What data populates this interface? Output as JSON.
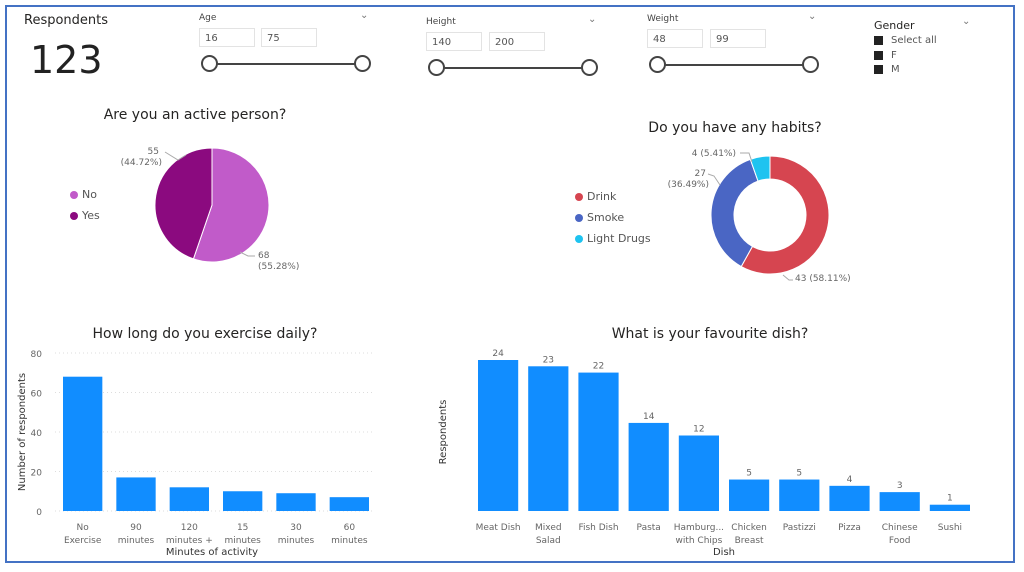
{
  "card": {
    "label": "Respondents",
    "value": "123"
  },
  "slicers": [
    {
      "label": "Age",
      "min": "16",
      "max": "75"
    },
    {
      "label": "Height",
      "min": "140",
      "max": "200"
    },
    {
      "label": "Weight",
      "min": "48",
      "max": "99"
    }
  ],
  "gender": {
    "label": "Gender",
    "options": [
      "Select all",
      "F",
      "M"
    ]
  },
  "chart_data": [
    {
      "type": "pie",
      "title": "Are you an active person?",
      "categories": [
        "No",
        "Yes"
      ],
      "values": [
        68,
        55
      ],
      "labels": [
        "68",
        "55"
      ],
      "percents": [
        "(55.28%)",
        "(44.72%)"
      ],
      "colors": [
        "#C15BC9",
        "#8B0A7F"
      ],
      "legend": "left"
    },
    {
      "type": "pie",
      "title": "Do you have any habits?",
      "categories": [
        "Drink",
        "Smoke",
        "Light Drugs"
      ],
      "values": [
        43,
        27,
        4
      ],
      "labels": [
        "43 (58.11%)",
        "27",
        "4 (5.41%)"
      ],
      "percents": [
        "",
        "(36.49%)",
        ""
      ],
      "colors": [
        "#D64550",
        "#4A66C4",
        "#1EC3F0"
      ],
      "legend": "left"
    },
    {
      "type": "bar",
      "title": "How long do you exercise daily?",
      "categories": [
        [
          "No",
          "Exercise"
        ],
        [
          "90",
          "minutes"
        ],
        [
          "120",
          "minutes +"
        ],
        [
          "15",
          "minutes"
        ],
        [
          "30",
          "minutes"
        ],
        [
          "60",
          "minutes"
        ]
      ],
      "values": [
        68,
        17,
        12,
        10,
        9,
        7
      ],
      "xlabel": "Minutes of activity",
      "ylabel": "Number of respondents",
      "ylim": [
        0,
        80
      ],
      "yticks": [
        "0",
        "20",
        "40",
        "60",
        "80"
      ],
      "color": "#118DFF"
    },
    {
      "type": "bar",
      "title": "What is your favourite dish?",
      "categories": [
        [
          "Meat Dish"
        ],
        [
          "Mixed",
          "Salad"
        ],
        [
          "Fish Dish"
        ],
        [
          "Pasta"
        ],
        [
          "Hamburg...",
          "with Chips"
        ],
        [
          "Chicken",
          "Breast"
        ],
        [
          "Pastizzi"
        ],
        [
          "Pizza"
        ],
        [
          "Chinese",
          "Food"
        ],
        [
          "Sushi"
        ]
      ],
      "values": [
        24,
        23,
        22,
        14,
        12,
        5,
        5,
        4,
        3,
        1
      ],
      "xlabel": "Dish",
      "ylabel": "Respondents",
      "ylim": [
        0,
        25
      ],
      "color": "#118DFF"
    }
  ]
}
